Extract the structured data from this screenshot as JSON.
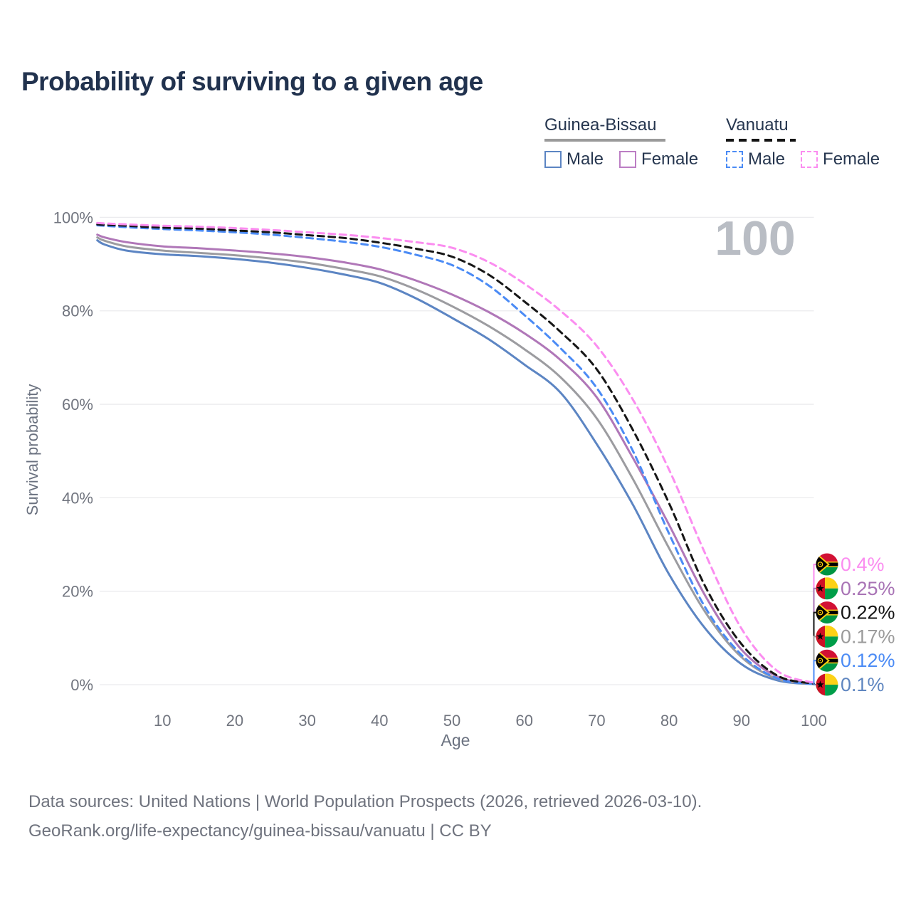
{
  "title": "Probability of surviving to a given age",
  "watermark": "100",
  "legend": {
    "groups": [
      {
        "name": "Guinea-Bissau",
        "line_style": "solid",
        "underline_color": "#9a9a9a",
        "items": [
          {
            "label": "Male",
            "color": "#5c85c3",
            "dashed": false
          },
          {
            "label": "Female",
            "color": "#bc7ec4",
            "dashed": false
          }
        ]
      },
      {
        "name": "Vanuatu",
        "line_style": "dashed",
        "underline_color": "#141414",
        "items": [
          {
            "label": "Male",
            "color": "#4b8bf5",
            "dashed": true
          },
          {
            "label": "Female",
            "color": "#fb8df0",
            "dashed": true
          }
        ]
      }
    ]
  },
  "chart_data": {
    "type": "line",
    "title": "Probability of surviving to a given age",
    "xlabel": "Age",
    "ylabel": "Survival probability",
    "xlim": [
      1,
      100
    ],
    "ylim": [
      0,
      100
    ],
    "grid": "horizontal",
    "x_ticks": [
      10,
      20,
      30,
      40,
      50,
      60,
      70,
      80,
      90,
      100
    ],
    "y_ticks": [
      0,
      20,
      40,
      60,
      80,
      100
    ],
    "y_tick_labels": [
      "0%",
      "20%",
      "40%",
      "60%",
      "80%",
      "100%"
    ],
    "ages": [
      1,
      2,
      5,
      10,
      15,
      20,
      25,
      30,
      35,
      40,
      45,
      50,
      55,
      60,
      65,
      70,
      75,
      80,
      85,
      90,
      95,
      100
    ],
    "series": [
      {
        "name": "Guinea-Bissau Male",
        "color": "#5c85c3",
        "dash": false,
        "end_label": "0.1%",
        "values": [
          95.1,
          94.2,
          92.9,
          92.1,
          91.7,
          91.1,
          90.3,
          89.2,
          87.8,
          86.0,
          82.7,
          78.5,
          74.0,
          68.5,
          62.5,
          51.5,
          38.5,
          23.6,
          12.0,
          4.4,
          0.9,
          0.1
        ]
      },
      {
        "name": "Guinea-Bissau Total",
        "color": "#9c9ca0",
        "dash": false,
        "end_label": "0.17%",
        "values": [
          95.7,
          95.0,
          93.8,
          92.9,
          92.4,
          91.9,
          91.2,
          90.3,
          89.0,
          87.4,
          84.6,
          81.0,
          76.8,
          71.8,
          65.8,
          57.0,
          44.0,
          29.2,
          15.5,
          5.9,
          1.2,
          0.17
        ]
      },
      {
        "name": "Guinea-Bissau Female",
        "color": "#b077b8",
        "dash": false,
        "end_label": "0.25%",
        "values": [
          96.3,
          95.7,
          94.7,
          93.8,
          93.4,
          92.9,
          92.3,
          91.5,
          90.4,
          88.9,
          86.5,
          83.5,
          79.8,
          75.2,
          69.5,
          61.5,
          48.5,
          34.2,
          19.0,
          7.5,
          1.7,
          0.25
        ]
      },
      {
        "name": "Vanuatu Male",
        "color": "#4b8bf5",
        "dash": true,
        "end_label": "0.12%",
        "values": [
          98.3,
          98.2,
          97.9,
          97.5,
          97.2,
          96.8,
          96.3,
          95.6,
          94.8,
          93.7,
          92.0,
          89.8,
          85.5,
          79.1,
          72.0,
          63.5,
          50.0,
          32.3,
          16.5,
          6.4,
          1.3,
          0.12
        ]
      },
      {
        "name": "Vanuatu Total",
        "color": "#161616",
        "dash": true,
        "end_label": "0.22%",
        "values": [
          98.5,
          98.4,
          98.2,
          97.8,
          97.6,
          97.2,
          96.8,
          96.2,
          95.6,
          94.6,
          93.3,
          91.6,
          87.8,
          82.0,
          75.5,
          67.5,
          54.5,
          38.8,
          21.0,
          8.7,
          1.9,
          0.22
        ]
      },
      {
        "name": "Vanuatu Female",
        "color": "#fb8df0",
        "dash": true,
        "end_label": "0.4%",
        "values": [
          98.8,
          98.7,
          98.5,
          98.2,
          98.0,
          97.7,
          97.3,
          96.8,
          96.3,
          95.6,
          94.7,
          93.5,
          90.5,
          85.8,
          80.0,
          72.5,
          61.0,
          46.0,
          28.0,
          12.0,
          2.9,
          0.4
        ]
      }
    ],
    "legend_position": "top-right"
  },
  "end_labels": [
    {
      "text": "0.4%",
      "color": "#fb8df0",
      "flag": "vanuatu",
      "series": "Vanuatu Female"
    },
    {
      "text": "0.25%",
      "color": "#a873b5",
      "flag": "guinea-bissau",
      "series": "Guinea-Bissau Female"
    },
    {
      "text": "0.22%",
      "color": "#141414",
      "flag": "vanuatu",
      "series": "Vanuatu Total"
    },
    {
      "text": "0.17%",
      "color": "#9b9b9b",
      "flag": "guinea-bissau",
      "series": "Guinea-Bissau Total"
    },
    {
      "text": "0.12%",
      "color": "#4b8bf5",
      "flag": "vanuatu",
      "series": "Vanuatu Male"
    },
    {
      "text": "0.1%",
      "color": "#5f86c0",
      "flag": "guinea-bissau",
      "series": "Guinea-Bissau Male"
    }
  ],
  "flag_colors": {
    "guinea_bissau": {
      "red": "#CE1126",
      "yellow": "#FCD116",
      "green": "#009E49",
      "star": "#000000"
    },
    "vanuatu": {
      "red": "#D21034",
      "green": "#009543",
      "yellow": "#FDCE12",
      "black": "#000000"
    }
  },
  "footer": {
    "line1": "Data sources: United Nations | World Population Prospects (2026, retrieved 2026-03-10).",
    "line2": "GeoRank.org/life-expectancy/guinea-bissau/vanuatu | CC BY"
  }
}
